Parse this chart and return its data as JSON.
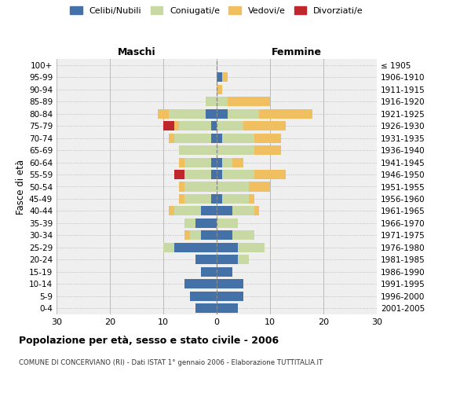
{
  "age_groups": [
    "0-4",
    "5-9",
    "10-14",
    "15-19",
    "20-24",
    "25-29",
    "30-34",
    "35-39",
    "40-44",
    "45-49",
    "50-54",
    "55-59",
    "60-64",
    "65-69",
    "70-74",
    "75-79",
    "80-84",
    "85-89",
    "90-94",
    "95-99",
    "100+"
  ],
  "birth_years": [
    "2001-2005",
    "1996-2000",
    "1991-1995",
    "1986-1990",
    "1981-1985",
    "1976-1980",
    "1971-1975",
    "1966-1970",
    "1961-1965",
    "1956-1960",
    "1951-1955",
    "1946-1950",
    "1941-1945",
    "1936-1940",
    "1931-1935",
    "1926-1930",
    "1921-1925",
    "1916-1920",
    "1911-1915",
    "1906-1910",
    "≤ 1905"
  ],
  "male_celibi": [
    4,
    5,
    6,
    3,
    4,
    8,
    3,
    4,
    3,
    1,
    0,
    1,
    1,
    0,
    1,
    1,
    2,
    0,
    0,
    0,
    0
  ],
  "male_coniugati": [
    0,
    0,
    0,
    0,
    0,
    2,
    2,
    2,
    5,
    5,
    6,
    5,
    5,
    7,
    7,
    6,
    7,
    2,
    0,
    0,
    0
  ],
  "male_vedovi": [
    0,
    0,
    0,
    0,
    0,
    0,
    1,
    0,
    1,
    1,
    1,
    0,
    1,
    0,
    1,
    1,
    2,
    0,
    0,
    0,
    0
  ],
  "male_divorziati": [
    0,
    0,
    0,
    0,
    0,
    0,
    0,
    0,
    0,
    0,
    0,
    2,
    0,
    0,
    0,
    2,
    0,
    0,
    0,
    0,
    0
  ],
  "female_nubili": [
    4,
    5,
    5,
    3,
    4,
    4,
    3,
    0,
    3,
    1,
    0,
    1,
    1,
    0,
    1,
    0,
    2,
    0,
    0,
    1,
    0
  ],
  "female_coniugate": [
    0,
    0,
    0,
    0,
    2,
    5,
    4,
    4,
    4,
    5,
    6,
    6,
    2,
    7,
    6,
    5,
    6,
    2,
    0,
    0,
    0
  ],
  "female_vedove": [
    0,
    0,
    0,
    0,
    0,
    0,
    0,
    0,
    1,
    1,
    4,
    6,
    2,
    5,
    5,
    8,
    10,
    8,
    1,
    1,
    0
  ],
  "female_divorziate": [
    0,
    0,
    0,
    0,
    0,
    0,
    0,
    0,
    0,
    0,
    0,
    0,
    0,
    0,
    0,
    0,
    0,
    0,
    0,
    0,
    0
  ],
  "color_celibi": "#4472a8",
  "color_coniugati": "#c8d9a4",
  "color_vedovi": "#f0c060",
  "color_divorziati": "#c0272d",
  "xlim": 30,
  "bg_color": "#efefef",
  "title": "Popolazione per età, sesso e stato civile - 2006",
  "subtitle": "COMUNE DI CONCERVIANO (RI) - Dati ISTAT 1° gennaio 2006 - Elaborazione TUTTITALIA.IT",
  "ylabel_left": "Fasce di età",
  "label_maschi": "Maschi",
  "label_femmine": "Femmine",
  "legend_labels": [
    "Celibi/Nubili",
    "Coniugati/e",
    "Vedovi/e",
    "Divorziati/e"
  ]
}
